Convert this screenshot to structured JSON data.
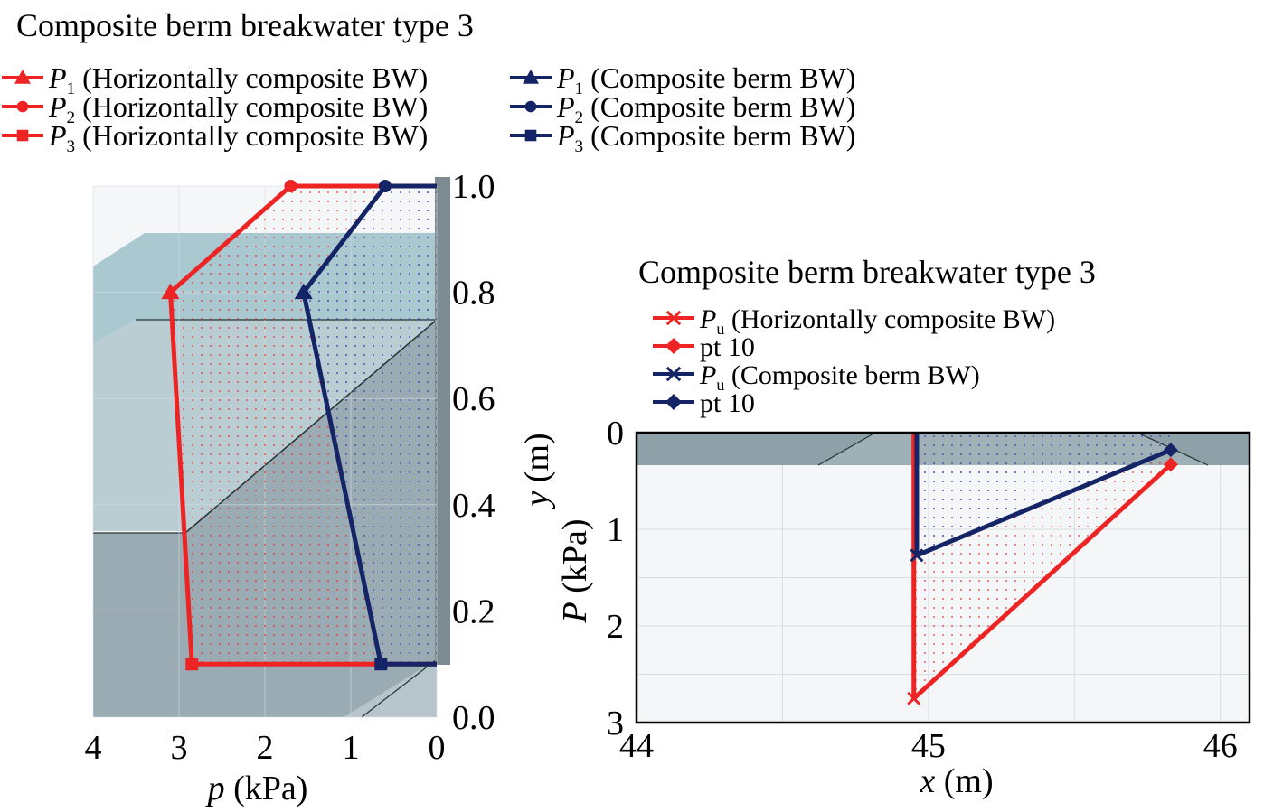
{
  "colors": {
    "horiz": "#ee2424",
    "berm": "#142466",
    "grid": "#d8dde2"
  },
  "chart_data": [
    {
      "type": "line",
      "title": "Composite berm breakwater type 3",
      "xlabel": "p (kPa)",
      "ylabel": "y (m)",
      "xlim": [
        0,
        4
      ],
      "ylim": [
        0,
        1.0
      ],
      "x_reversed": true,
      "xticks": [
        "4",
        "3",
        "2",
        "1",
        "0"
      ],
      "yticks": [
        "0.0",
        "0.2",
        "0.4",
        "0.6",
        "0.8",
        "1.0"
      ],
      "legend": [
        {
          "symbol": "P",
          "sub": "1",
          "text": "(Horizontally composite BW)",
          "series": "horiz",
          "marker": "triangle"
        },
        {
          "symbol": "P",
          "sub": "2",
          "text": "(Horizontally composite BW)",
          "series": "horiz",
          "marker": "circle"
        },
        {
          "symbol": "P",
          "sub": "3",
          "text": "(Horizontally composite BW)",
          "series": "horiz",
          "marker": "square"
        },
        {
          "symbol": "P",
          "sub": "1",
          "text": "(Composite berm BW)",
          "series": "berm",
          "marker": "triangle"
        },
        {
          "symbol": "P",
          "sub": "2",
          "text": "(Composite berm BW)",
          "series": "berm",
          "marker": "circle"
        },
        {
          "symbol": "P",
          "sub": "3",
          "text": "(Composite berm BW)",
          "series": "berm",
          "marker": "square"
        }
      ],
      "series": [
        {
          "key": "horiz",
          "points": [
            {
              "x": 0.0,
              "y": 1.0
            },
            {
              "x": 1.7,
              "y": 1.0,
              "marker": "circle"
            },
            {
              "x": 3.1,
              "y": 0.8,
              "marker": "triangle"
            },
            {
              "x": 2.85,
              "y": 0.1,
              "marker": "square"
            },
            {
              "x": 0.0,
              "y": 0.1
            }
          ]
        },
        {
          "key": "berm",
          "points": [
            {
              "x": 0.0,
              "y": 1.0
            },
            {
              "x": 0.6,
              "y": 1.0,
              "marker": "circle"
            },
            {
              "x": 1.55,
              "y": 0.8,
              "marker": "triangle"
            },
            {
              "x": 0.65,
              "y": 0.1,
              "marker": "square"
            },
            {
              "x": 0.0,
              "y": 0.1
            }
          ]
        }
      ]
    },
    {
      "type": "line",
      "title": "Composite berm breakwater type 3",
      "xlabel": "x (m)",
      "ylabel": "P (kPa)",
      "xlim": [
        44,
        46.1
      ],
      "ylim": [
        0,
        3
      ],
      "y_reversed": true,
      "xticks": [
        "44",
        "45",
        "46"
      ],
      "yticks": [
        "0",
        "1",
        "2",
        "3"
      ],
      "legend": [
        {
          "symbol": "P",
          "sub": "u",
          "text": "(Horizontally composite BW)",
          "series": "horiz",
          "marker": "x"
        },
        {
          "symbol": "",
          "sub": "",
          "text": "pt 10",
          "series": "horiz",
          "marker": "diamond"
        },
        {
          "symbol": "P",
          "sub": "u",
          "text": "(Composite berm BW)",
          "series": "berm",
          "marker": "x"
        },
        {
          "symbol": "",
          "sub": "",
          "text": "pt 10",
          "series": "berm",
          "marker": "diamond"
        }
      ],
      "series": [
        {
          "key": "horiz",
          "points": [
            {
              "x": 44.95,
              "y": 0.0
            },
            {
              "x": 44.95,
              "y": 2.75,
              "marker": "x"
            },
            {
              "x": 45.83,
              "y": 0.33,
              "marker": "diamond"
            }
          ]
        },
        {
          "key": "berm",
          "points": [
            {
              "x": 44.96,
              "y": 0.0
            },
            {
              "x": 44.96,
              "y": 1.27,
              "marker": "x"
            },
            {
              "x": 45.83,
              "y": 0.18,
              "marker": "diamond"
            }
          ]
        }
      ]
    }
  ]
}
